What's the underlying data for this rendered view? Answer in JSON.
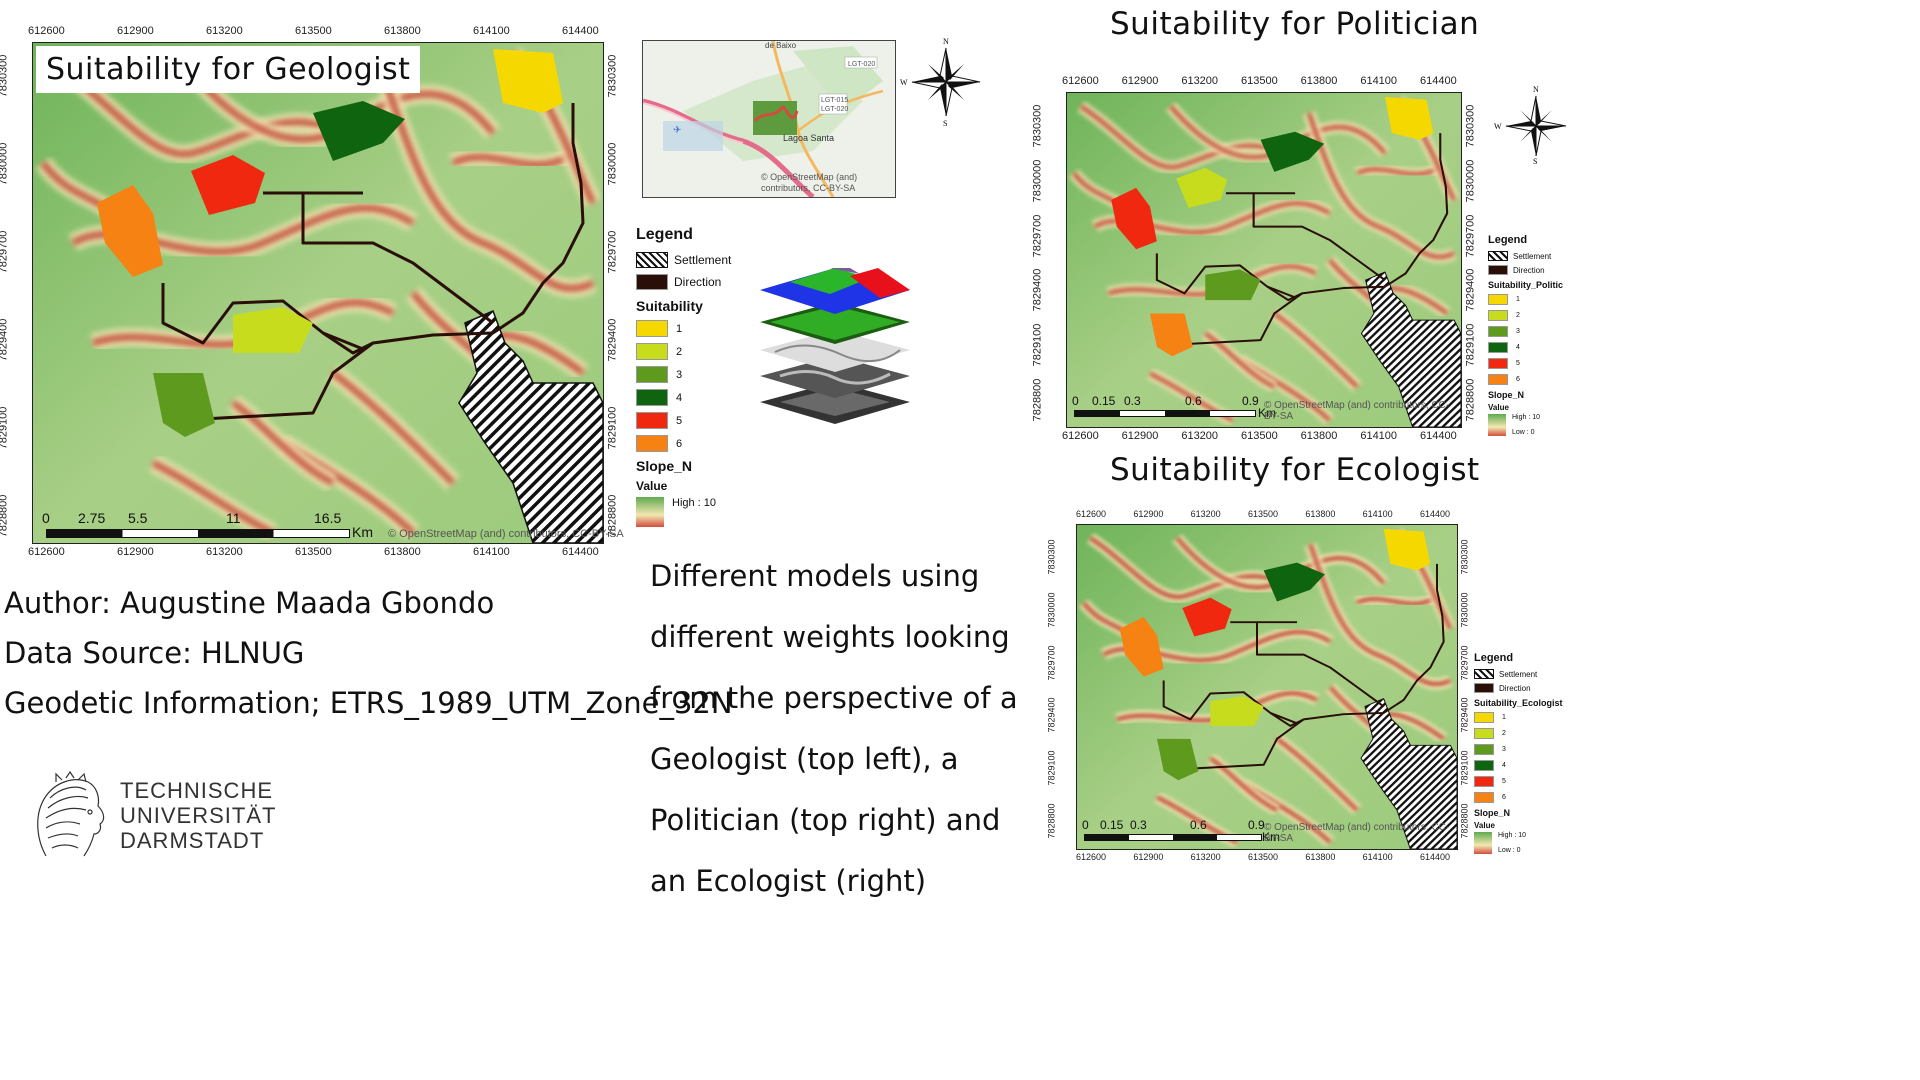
{
  "maps": {
    "geologist": {
      "title": "Suitability for Geologist",
      "scale_labels": [
        "0",
        "2.75",
        "5.5",
        "11",
        "16.5"
      ],
      "scale_unit": "Km",
      "attribution": "© OpenStreetMap (and) contributors, CC-BY-SA"
    },
    "politician": {
      "title": "Suitability for Politician",
      "scale_labels": [
        "0",
        "0.15",
        "0.3",
        "0.6",
        "0.9"
      ],
      "scale_unit": "Km",
      "attribution": "© OpenStreetMap (and) contributors, CC-BY-SA"
    },
    "ecologist": {
      "title": "Suitability for Ecologist",
      "scale_labels": [
        "0",
        "0.15",
        "0.3",
        "0.6",
        "0.9"
      ],
      "scale_unit": "Km",
      "attribution": "© OpenStreetMap (and) contributors, CC-BY-SA"
    }
  },
  "x_ticks": [
    "612600",
    "612900",
    "613200",
    "613500",
    "613800",
    "614100",
    "614400"
  ],
  "y_ticks": [
    "7830300",
    "7830000",
    "7829700",
    "7829400",
    "7829100",
    "7828800"
  ],
  "legend": {
    "title": "Legend",
    "settlement": "Settlement",
    "direction": "Direction",
    "suitability": "Suitability",
    "suitability_politician": "Suitability_Politic",
    "suitability_ecologist": "Suitability_Ecologist",
    "classes": [
      {
        "label": "1",
        "color": "#f5d800"
      },
      {
        "label": "2",
        "color": "#c8dc1e"
      },
      {
        "label": "3",
        "color": "#5e9a1e"
      },
      {
        "label": "4",
        "color": "#0f640f"
      },
      {
        "label": "5",
        "color": "#f02810"
      },
      {
        "label": "6",
        "color": "#f68214"
      }
    ],
    "slope": "Slope_N",
    "value": "Value",
    "high": "High : 10",
    "low": "Low : 0"
  },
  "inset": {
    "place_top": "de Baixo",
    "place_main": "Lagoa Santa",
    "road_1": "LGT-020",
    "road_2": "LGT-015",
    "road_3": "LGT-020",
    "attribution_1": "© OpenStreetMap (and)",
    "attribution_2": "contributors, CC-BY-SA"
  },
  "compass": {
    "n": "N",
    "w": "W",
    "s": "S"
  },
  "info": {
    "author": "Author: Augustine Maada Gbondo",
    "source": "Data Source: HLNUG",
    "geodetic": "Geodetic Information; ETRS_1989_UTM_Zone_32N"
  },
  "description": "Different models using different weights looking from the perspective of a Geologist (top left), a Politician (top right) and an Ecologist (right)",
  "logo": {
    "line1": "TECHNISCHE",
    "line2": "UNIVERSITÄT",
    "line3": "DARMSTADT"
  }
}
